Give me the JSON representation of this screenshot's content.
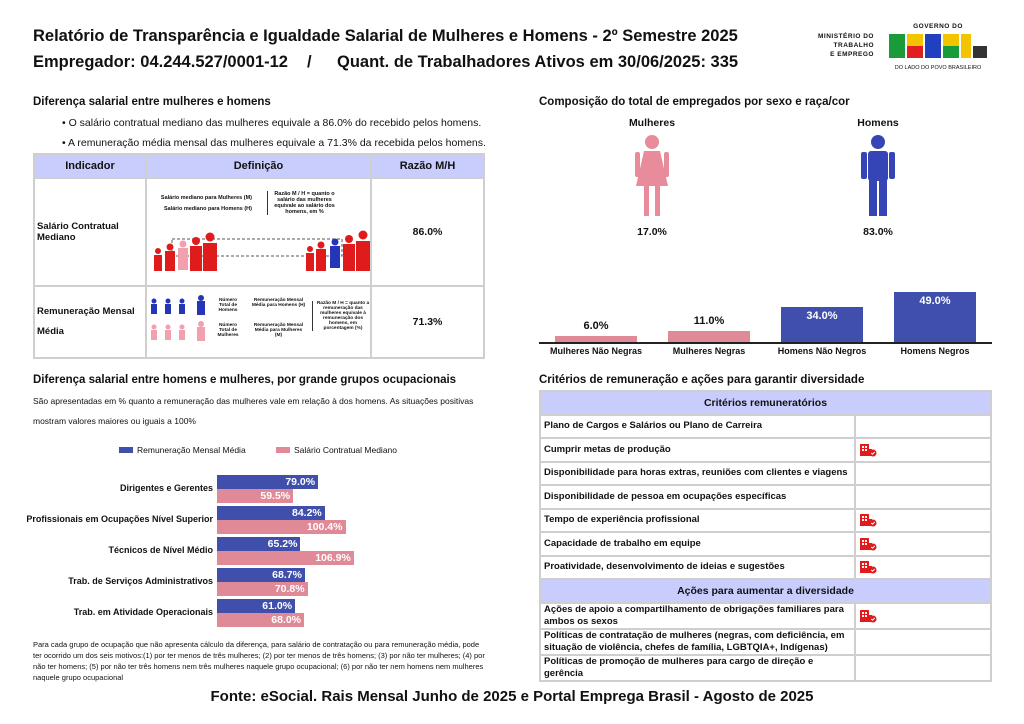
{
  "header": {
    "title": "Relatório de Transparência e Igualdade Salarial de Mulheres e Homens - 2º Semestre 2025",
    "employer": "Empregador: 04.244.527/0001-12",
    "separator": "/",
    "workers": "Quant. de Trabalhadores Ativos em 30/06/2025: 335",
    "logo_ministry": [
      "MINISTÉRIO DO",
      "TRABALHO",
      "E EMPREGO"
    ],
    "logo_gov_top": "GOVERNO DO",
    "logo_gov_main": "BRASIL",
    "logo_gov_bottom": "DO LADO DO POVO BRASILEIRO"
  },
  "pay_gap": {
    "title": "Diferença salarial entre mulheres e homens",
    "bullets": [
      "• O salário contratual mediano das mulheres equivale a 86.0% do recebido pelos homens.",
      "• A remuneração média mensal das mulheres equivale a 71.3% da recebida pelos homens."
    ],
    "columns": [
      "Indicador",
      "Definição",
      "Razão M/H"
    ],
    "rows": [
      {
        "indicator": "Salário Contratual Mediano",
        "ratio": "86.0%",
        "def": {
          "women": "Salário mediano para Mulheres (M)",
          "men": "Salário mediano para Homens (H)",
          "note": "Razão M / H = quanto o salário das mulheres equivale ao salário dos homens, em %"
        }
      },
      {
        "indicator": "Remuneração Mensal",
        "indicator2": "Média",
        "ratio": "71.3%",
        "def": {
          "total_men": "Número Total de Homens",
          "total_women": "Número Total de Mulheres",
          "avg_men": "Remuneração Mensal Média para Homens (H)",
          "avg_women": "Remuneração Mensal Média para Mulheres (M)",
          "note": "Razão M / H = quanto a remuneração das mulheres equivale à remuneração dos homens, em porcentagem (%)"
        }
      }
    ]
  },
  "composition": {
    "title": "Composição do total de empregados por sexo e raça/cor",
    "women_label": "Mulheres",
    "men_label": "Homens",
    "women_pct": "17.0%",
    "men_pct": "83.0%"
  },
  "occupations": {
    "title": "Diferença salarial entre homens e mulheres, por grande grupos ocupacionais",
    "desc1": "São apresentadas em % quanto a remuneração das mulheres vale em relação à dos homens. As situações positivas",
    "desc2": "mostram valores maiores ou iguais a 100%",
    "footnote": "Para cada grupo de ocupação que não apresenta cálculo da diferença, para salário de contratação ou para remuneração média, pode ter ocorrido um dos seis motivos:(1) por ter menos de três mulheres; (2) por ter menos de três homens; (3) por não ter mulheres; (4) por não ter homens; (5) por não ter três homens nem três mulheres naquele grupo ocupacional; (6) por não ter nem homens nem mulheres naquele grupo ocupacional"
  },
  "criteria": {
    "title": "Critérios de remuneração e ações para garantir diversidade",
    "header1": "Critérios remuneratórios",
    "items1": [
      {
        "label": "Plano de Cargos e Salários ou Plano de Carreira",
        "checked": false
      },
      {
        "label": "Cumprir metas de produção",
        "checked": true
      },
      {
        "label": "Disponibilidade para horas extras, reuniões com clientes e viagens",
        "checked": false
      },
      {
        "label": "Disponibilidade de pessoa em ocupações específicas",
        "checked": false
      },
      {
        "label": "Tempo de experiência profissional",
        "checked": true
      },
      {
        "label": "Capacidade de trabalho em equipe",
        "checked": true
      },
      {
        "label": "Proatividade, desenvolvimento de ideias e sugestões",
        "checked": true
      }
    ],
    "header2": "Ações para aumentar a diversidade",
    "items2": [
      {
        "label": "Ações de apoio a compartilhamento de obrigações familiares para ambos os sexos",
        "checked": true
      },
      {
        "label": "Políticas de contratação de mulheres (negras, com deficiência, em situação de violência, chefes de família, LGBTQIA+, Indígenas)",
        "checked": false
      },
      {
        "label": "Políticas de promoção de mulheres para cargo de direção e gerência",
        "checked": false
      }
    ],
    "check_icon": "company-check-icon"
  },
  "footer": "Fonte: eSocial. Rais Mensal Junho de 2025 e Portal Emprega Brasil - Agosto de 2025",
  "colors": {
    "blue": "#3f4fab",
    "pink": "#e08a98",
    "header_bg": "#c9cdfd",
    "icon_red": "#e01b1b"
  },
  "chart_data": [
    {
      "type": "bar",
      "orientation": "vertical",
      "categories": [
        "Mulheres Não Negras",
        "Mulheres Negras",
        "Homens Não Negros",
        "Homens Negros"
      ],
      "values": [
        6.0,
        11.0,
        34.0,
        49.0
      ],
      "labels": [
        "6.0%",
        "11.0%",
        "34.0%",
        "49.0%"
      ],
      "colors": [
        "#e08a98",
        "#e08a98",
        "#3f4fab",
        "#3f4fab"
      ],
      "unit": "%"
    },
    {
      "type": "bar",
      "orientation": "horizontal",
      "categories": [
        "Dirigentes e Gerentes",
        "Profissionais em Ocupações Nível Superior",
        "Técnicos de Nível Médio",
        "Trab. de Serviços Administrativos",
        "Trab. em Atividade Operacionais"
      ],
      "series": [
        {
          "name": "Remuneração Mensal Média",
          "values": [
            79.0,
            84.2,
            65.2,
            68.7,
            61.0
          ],
          "labels": [
            "79.0%",
            "84.2%",
            "65.2%",
            "68.7%",
            "61.0%"
          ],
          "color": "#3f4fab"
        },
        {
          "name": "Salário Contratual Mediano",
          "values": [
            59.5,
            100.4,
            106.9,
            70.8,
            68.0
          ],
          "labels": [
            "59.5%",
            "100.4%",
            "106.9%",
            "70.8%",
            "68.0%"
          ],
          "color": "#e08a98"
        }
      ],
      "legend": "top",
      "unit": "%"
    }
  ]
}
